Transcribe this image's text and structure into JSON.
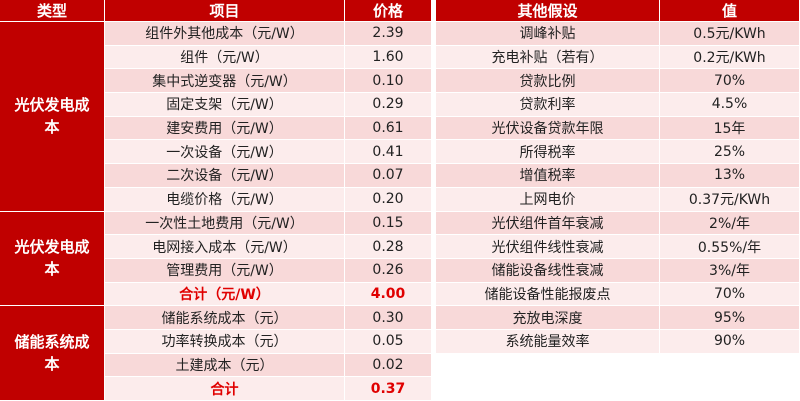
{
  "left_table": {
    "headers": [
      "类型",
      "项目",
      "价格"
    ],
    "groups": [
      {
        "category": "光伏发电成本",
        "rows": [
          [
            "组件外其他成本（元/W）",
            "2.39"
          ],
          [
            "组件（元/W）",
            "1.60"
          ],
          [
            "集中式逆变器（元/W）",
            "0.10"
          ],
          [
            "固定支架（元/W）",
            "0.29"
          ],
          [
            "建安费用（元/W）",
            "0.61"
          ],
          [
            "一次设备（元/W）",
            "0.41"
          ],
          [
            "二次设备（元/W）",
            "0.07"
          ],
          [
            "电缆价格（元/W）",
            "0.20"
          ]
        ]
      },
      {
        "category": "光伏发电成本",
        "rows": [
          [
            "一次性土地费用（元/W）",
            "0.15"
          ],
          [
            "电网接入成本（元/W）",
            "0.28"
          ],
          [
            "管理费用（元/W）",
            "0.26"
          ],
          [
            "合计（元/W）",
            "4.00"
          ]
        ]
      },
      {
        "category": "储能系统成本",
        "rows": [
          [
            "储能系统成本（元）",
            "0.30"
          ],
          [
            "功率转换成本（元）",
            "0.05"
          ],
          [
            "土建成本（元）",
            "0.02"
          ],
          [
            "合计",
            "0.37"
          ]
        ]
      }
    ]
  },
  "right_table": {
    "headers": [
      "其他假设",
      "值"
    ],
    "rows": [
      [
        "调峰补贴",
        "0.5元/KWh"
      ],
      [
        "充电补贴（若有）",
        "0.2元/KWh"
      ],
      [
        "贷款比例",
        "70%"
      ],
      [
        "贷款利率",
        "4.5%"
      ],
      [
        "光伏设备贷款年限",
        "15年"
      ],
      [
        "所得税率",
        "25%"
      ],
      [
        "增值税率",
        "13%"
      ],
      [
        "上网电价",
        "0.37元/KWh"
      ],
      [
        "光伏组件首年衰减",
        "2%/年"
      ],
      [
        "光伏组件线性衰减",
        "0.55%/年"
      ],
      [
        "储能设备线性衰减",
        "3%/年"
      ],
      [
        "储能设备性能报废点",
        "70%"
      ],
      [
        "充放电深度",
        "95%"
      ],
      [
        "系统能量效率",
        "90%"
      ]
    ]
  }
}
